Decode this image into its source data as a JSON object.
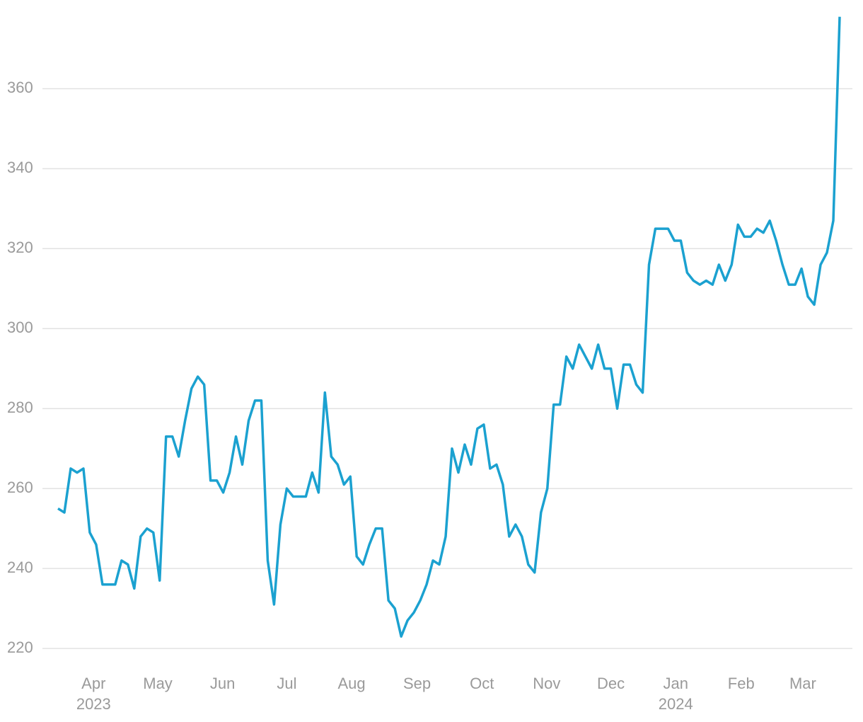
{
  "chart_data": {
    "type": "line",
    "series": [
      {
        "color": "#1ba1d0",
        "values": [
          255,
          254,
          265,
          264,
          265,
          249,
          246,
          236,
          236,
          236,
          242,
          241,
          235,
          248,
          250,
          249,
          237,
          273,
          273,
          268,
          277,
          285,
          288,
          286,
          262,
          262,
          259,
          264,
          273,
          266,
          277,
          282,
          282,
          242,
          231,
          251,
          260,
          258,
          258,
          258,
          264,
          259,
          284,
          268,
          266,
          261,
          263,
          243,
          241,
          246,
          250,
          250,
          232,
          230,
          223,
          227,
          229,
          232,
          236,
          242,
          241,
          248,
          270,
          264,
          271,
          266,
          275,
          276,
          265,
          266,
          261,
          248,
          251,
          248,
          241,
          239,
          254,
          260,
          281,
          281,
          293,
          290,
          296,
          293,
          290,
          296,
          290,
          290,
          280,
          291,
          291,
          286,
          284,
          316,
          325,
          325,
          325,
          322,
          322,
          314,
          312,
          311,
          312,
          311,
          316,
          312,
          316,
          326,
          323,
          323,
          325,
          324,
          327,
          322,
          316,
          311,
          311,
          315,
          308,
          306,
          316,
          319,
          327,
          378
        ]
      }
    ],
    "xlim": [
      0,
      123
    ],
    "xticks": [
      {
        "value": 5.6,
        "label": "Apr"
      },
      {
        "value": 15.7,
        "label": "May"
      },
      {
        "value": 25.9,
        "label": "Jun"
      },
      {
        "value": 36,
        "label": "Jul"
      },
      {
        "value": 46.2,
        "label": "Aug"
      },
      {
        "value": 56.5,
        "label": "Sep"
      },
      {
        "value": 66.7,
        "label": "Oct"
      },
      {
        "value": 76.9,
        "label": "Nov"
      },
      {
        "value": 87,
        "label": "Dec"
      },
      {
        "value": 97.2,
        "label": "Jan"
      },
      {
        "value": 107.5,
        "label": "Feb"
      },
      {
        "value": 117.2,
        "label": "Mar"
      }
    ],
    "year_labels": [
      {
        "value": 5.6,
        "label": "2023"
      },
      {
        "value": 97.2,
        "label": "2024"
      }
    ],
    "ylim": [
      214,
      382.2
    ],
    "yticks": [
      220,
      240,
      260,
      280,
      300,
      320,
      340,
      360
    ],
    "grid": true
  }
}
